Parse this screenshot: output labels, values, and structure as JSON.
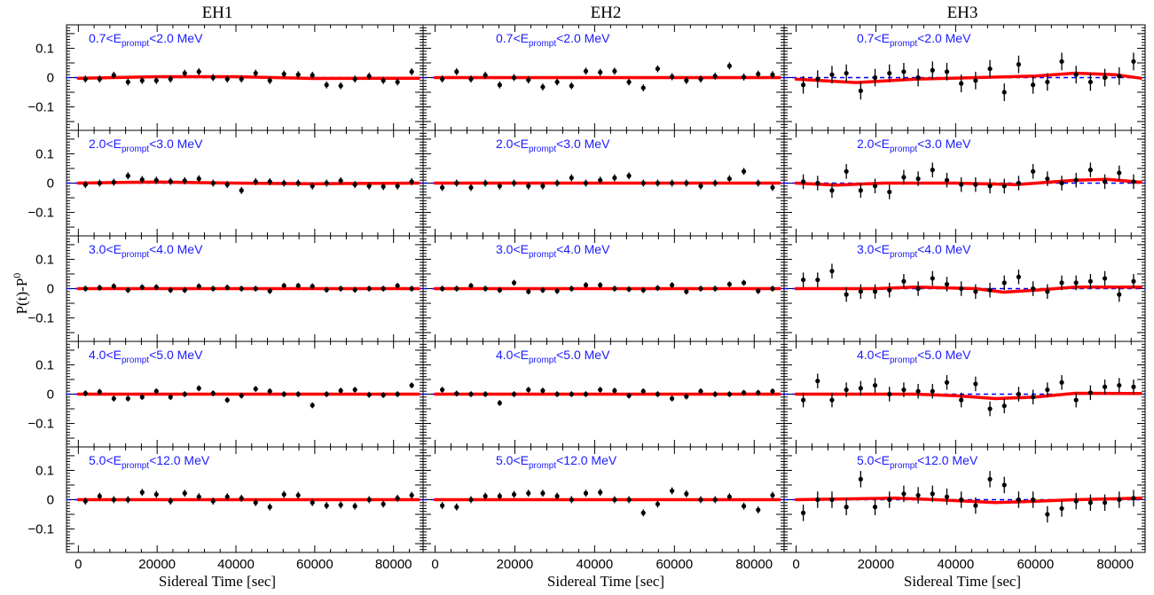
{
  "columns": [
    "EH1",
    "EH2",
    "EH3"
  ],
  "xlabel": "Sidereal Time [sec]",
  "ylabel": "P(t)-P",
  "ylabel_sup": "0",
  "x_ticks": [
    "0",
    "20000",
    "40000",
    "60000",
    "80000"
  ],
  "y_ticks": [
    "0.1",
    "0",
    "−0.1"
  ],
  "energy_bins": [
    {
      "pre": "0.7<E",
      "sub": "prompt",
      "post": "<2.0 MeV"
    },
    {
      "pre": "2.0<E",
      "sub": "prompt",
      "post": "<3.0 MeV"
    },
    {
      "pre": "3.0<E",
      "sub": "prompt",
      "post": "<4.0 MeV"
    },
    {
      "pre": "4.0<E",
      "sub": "prompt",
      "post": "<5.0 MeV"
    },
    {
      "pre": "5.0<E",
      "sub": "prompt",
      "post": "<12.0 MeV"
    }
  ],
  "colors": {
    "data": "#000000",
    "fit": "#ff0000",
    "zero_line": "#0000ff",
    "label": "#1a1aff"
  },
  "chart_data": {
    "type": "scatter",
    "grid": false,
    "xlim": [
      -3000,
      87500
    ],
    "ylim": [
      -0.18,
      0.18
    ],
    "x": [
      1800,
      5400,
      9000,
      12600,
      16200,
      19800,
      23400,
      27000,
      30600,
      34200,
      37800,
      41400,
      45000,
      48600,
      52200,
      55800,
      59400,
      63000,
      66600,
      70200,
      73800,
      77400,
      81000,
      84600
    ],
    "panels": [
      {
        "hall": "EH1",
        "energy": "0.7<Eprompt<2.0 MeV",
        "err": 0.012,
        "y": [
          -0.005,
          -0.005,
          0.008,
          -0.015,
          -0.01,
          -0.01,
          -0.005,
          0.015,
          0.02,
          0.0,
          -0.005,
          -0.005,
          0.015,
          -0.01,
          0.012,
          0.01,
          0.008,
          -0.025,
          -0.028,
          -0.005,
          0.005,
          -0.01,
          -0.015,
          0.02
        ],
        "fit": [
          [
            0,
            -0.002
          ],
          [
            20000,
            0.003
          ],
          [
            40000,
            0.003
          ],
          [
            60000,
            -0.003
          ],
          [
            86400,
            -0.002
          ]
        ]
      },
      {
        "hall": "EH2",
        "energy": "0.7<Eprompt<2.0 MeV",
        "err": 0.012,
        "y": [
          -0.005,
          0.02,
          -0.005,
          0.008,
          -0.025,
          0.0,
          -0.008,
          -0.032,
          -0.015,
          -0.028,
          0.022,
          0.018,
          0.022,
          -0.015,
          -0.035,
          0.03,
          0.003,
          -0.01,
          -0.005,
          0.005,
          0.04,
          0.002,
          0.012,
          0.01
        ],
        "fit": [
          [
            0,
            0.0
          ],
          [
            86400,
            0.0
          ]
        ]
      },
      {
        "hall": "EH3",
        "energy": "0.7<Eprompt<2.0 MeV",
        "err": 0.03,
        "y": [
          -0.025,
          -0.005,
          0.01,
          0.015,
          -0.045,
          0.0,
          0.015,
          0.02,
          0.0,
          0.025,
          0.02,
          -0.02,
          -0.01,
          0.03,
          -0.05,
          0.045,
          -0.025,
          -0.015,
          0.055,
          0.01,
          -0.015,
          0.0,
          0.005,
          0.055
        ],
        "fit": [
          [
            0,
            -0.005
          ],
          [
            15000,
            -0.017
          ],
          [
            30000,
            -0.005
          ],
          [
            45000,
            0.0
          ],
          [
            60000,
            0.005
          ],
          [
            70000,
            0.015
          ],
          [
            80000,
            0.01
          ],
          [
            86400,
            -0.002
          ]
        ]
      },
      {
        "hall": "EH1",
        "energy": "2.0<Eprompt<3.0 MeV",
        "err": 0.012,
        "y": [
          -0.005,
          0.0,
          0.003,
          0.025,
          0.012,
          0.01,
          0.006,
          0.008,
          0.015,
          0.0,
          -0.005,
          -0.025,
          0.005,
          0.005,
          0.0,
          0.0,
          -0.01,
          0.0,
          0.008,
          -0.005,
          -0.01,
          -0.012,
          -0.01,
          0.005
        ],
        "fit": [
          [
            0,
            0.0
          ],
          [
            20000,
            0.004
          ],
          [
            40000,
            0.0
          ],
          [
            60000,
            -0.002
          ],
          [
            86400,
            0.0
          ]
        ]
      },
      {
        "hall": "EH2",
        "energy": "2.0<Eprompt<3.0 MeV",
        "err": 0.012,
        "y": [
          -0.015,
          0.0,
          -0.015,
          0.0,
          -0.01,
          0.0,
          -0.01,
          -0.01,
          0.0,
          0.018,
          0.0,
          0.01,
          0.018,
          0.025,
          0.0,
          0.0,
          0.0,
          0.0,
          -0.01,
          0.0,
          0.015,
          0.04,
          0.0,
          -0.015
        ],
        "fit": [
          [
            0,
            0.0
          ],
          [
            86400,
            0.0
          ]
        ]
      },
      {
        "hall": "EH3",
        "energy": "2.0<Eprompt<3.0 MeV",
        "err": 0.025,
        "y": [
          0.005,
          0.0,
          -0.025,
          0.04,
          -0.025,
          -0.01,
          -0.03,
          0.02,
          0.015,
          0.045,
          0.01,
          -0.005,
          -0.005,
          -0.01,
          -0.01,
          0.0,
          0.04,
          0.015,
          0.0,
          0.01,
          0.045,
          0.005,
          0.035,
          0.005
        ],
        "fit": [
          [
            0,
            0.0
          ],
          [
            10000,
            -0.007
          ],
          [
            22000,
            0.0
          ],
          [
            40000,
            0.0
          ],
          [
            55000,
            -0.005
          ],
          [
            70000,
            0.01
          ],
          [
            78000,
            0.013
          ],
          [
            86400,
            0.003
          ]
        ]
      },
      {
        "hall": "EH1",
        "energy": "3.0<Eprompt<4.0 MeV",
        "err": 0.01,
        "y": [
          0.0,
          0.003,
          0.008,
          -0.005,
          0.005,
          0.005,
          -0.005,
          -0.005,
          0.008,
          0.0,
          0.004,
          0.0,
          0.0,
          -0.008,
          0.01,
          0.01,
          0.008,
          -0.004,
          0.0,
          -0.004,
          0.0,
          0.0,
          0.01,
          0.0
        ],
        "fit": [
          [
            0,
            0.0
          ],
          [
            86400,
            0.0
          ]
        ]
      },
      {
        "hall": "EH2",
        "energy": "3.0<Eprompt<4.0 MeV",
        "err": 0.01,
        "y": [
          0.0,
          0.0,
          0.01,
          0.0,
          -0.005,
          0.02,
          -0.01,
          -0.005,
          -0.008,
          0.0,
          0.012,
          0.012,
          0.0,
          -0.002,
          -0.005,
          0.002,
          0.012,
          -0.01,
          0.0,
          0.0,
          0.015,
          0.02,
          -0.008,
          0.0
        ],
        "fit": [
          [
            0,
            0.0
          ],
          [
            86400,
            0.0
          ]
        ]
      },
      {
        "hall": "EH3",
        "energy": "3.0<Eprompt<4.0 MeV",
        "err": 0.025,
        "y": [
          0.03,
          0.03,
          0.06,
          -0.02,
          -0.01,
          -0.01,
          -0.005,
          0.025,
          0.0,
          0.035,
          0.015,
          0.0,
          -0.01,
          -0.005,
          0.02,
          0.04,
          0.0,
          -0.01,
          0.02,
          0.02,
          0.025,
          0.035,
          -0.02,
          0.025
        ],
        "fit": [
          [
            0,
            0.0
          ],
          [
            20000,
            0.0
          ],
          [
            30000,
            0.005
          ],
          [
            45000,
            0.0
          ],
          [
            52000,
            -0.012
          ],
          [
            60000,
            -0.005
          ],
          [
            70000,
            0.005
          ],
          [
            86400,
            0.005
          ]
        ]
      },
      {
        "hall": "EH1",
        "energy": "4.0<Eprompt<5.0 MeV",
        "err": 0.01,
        "y": [
          0.003,
          0.008,
          -0.015,
          -0.015,
          -0.01,
          0.01,
          -0.01,
          0.0,
          0.02,
          0.003,
          -0.02,
          -0.005,
          0.018,
          0.01,
          0.0,
          0.0,
          -0.038,
          0.0,
          0.012,
          0.015,
          -0.002,
          -0.003,
          0.0,
          0.03
        ],
        "fit": [
          [
            0,
            0.0
          ],
          [
            86400,
            0.0
          ]
        ]
      },
      {
        "hall": "EH2",
        "energy": "4.0<Eprompt<5.0 MeV",
        "err": 0.01,
        "y": [
          0.015,
          0.002,
          0.0,
          0.0,
          -0.03,
          0.0,
          0.015,
          0.012,
          0.0,
          0.0,
          0.0,
          0.015,
          0.012,
          -0.005,
          0.01,
          0.0,
          -0.015,
          -0.008,
          0.01,
          0.0,
          0.0,
          0.005,
          0.005,
          0.01
        ],
        "fit": [
          [
            0,
            0.0
          ],
          [
            86400,
            0.0
          ]
        ]
      },
      {
        "hall": "EH3",
        "energy": "4.0<Eprompt<5.0 MeV",
        "err": 0.025,
        "y": [
          -0.02,
          0.045,
          -0.02,
          0.015,
          0.02,
          0.03,
          0.0,
          0.015,
          0.01,
          0.01,
          0.04,
          -0.02,
          0.035,
          -0.05,
          -0.04,
          0.0,
          -0.01,
          0.015,
          0.04,
          -0.02,
          0.005,
          0.025,
          0.03,
          0.025
        ],
        "fit": [
          [
            0,
            0.0
          ],
          [
            30000,
            0.0
          ],
          [
            40000,
            -0.005
          ],
          [
            50000,
            -0.015
          ],
          [
            60000,
            -0.01
          ],
          [
            70000,
            0.003
          ],
          [
            86400,
            0.002
          ]
        ]
      },
      {
        "hall": "EH1",
        "energy": "5.0<Eprompt<12.0 MeV",
        "err": 0.012,
        "y": [
          -0.005,
          0.012,
          0.0,
          0.0,
          0.025,
          0.018,
          -0.005,
          0.022,
          0.01,
          -0.005,
          0.01,
          0.005,
          -0.01,
          -0.025,
          0.018,
          0.015,
          -0.01,
          -0.02,
          -0.018,
          -0.022,
          0.0,
          -0.015,
          0.005,
          0.015
        ],
        "fit": [
          [
            0,
            0.0
          ],
          [
            86400,
            0.0
          ]
        ]
      },
      {
        "hall": "EH2",
        "energy": "5.0<Eprompt<12.0 MeV",
        "err": 0.012,
        "y": [
          -0.02,
          -0.025,
          0.0,
          0.012,
          0.012,
          0.018,
          0.022,
          0.022,
          0.012,
          0.0,
          0.022,
          0.025,
          0.0,
          0.0,
          -0.045,
          -0.015,
          0.03,
          0.02,
          0.0,
          0.0,
          0.01,
          -0.022,
          -0.035,
          0.015
        ],
        "fit": [
          [
            0,
            0.0
          ],
          [
            86400,
            0.0
          ]
        ]
      },
      {
        "hall": "EH3",
        "energy": "5.0<Eprompt<12.0 MeV",
        "err": 0.028,
        "y": [
          -0.045,
          0.0,
          0.0,
          -0.025,
          0.07,
          -0.025,
          0.0,
          0.02,
          0.015,
          0.02,
          0.01,
          0.0,
          -0.02,
          0.07,
          0.05,
          0.0,
          0.0,
          -0.05,
          -0.03,
          -0.005,
          -0.01,
          -0.01,
          0.0,
          0.005
        ],
        "fit": [
          [
            0,
            0.0
          ],
          [
            25000,
            0.005
          ],
          [
            35000,
            0.0
          ],
          [
            50000,
            -0.01
          ],
          [
            60000,
            -0.005
          ],
          [
            70000,
            0.0
          ],
          [
            86400,
            0.005
          ]
        ]
      }
    ]
  }
}
